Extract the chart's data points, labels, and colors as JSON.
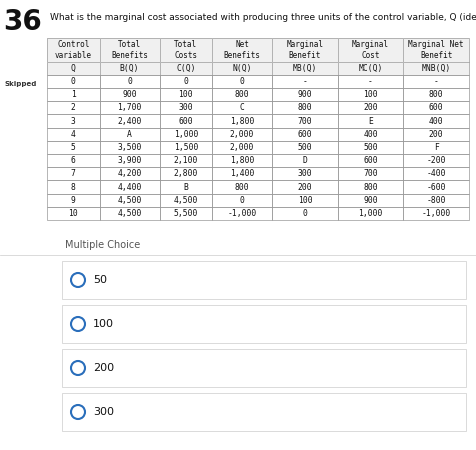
{
  "question_number": "36",
  "question_text": "What is the marginal cost associated with producing three units of the control variable, Q (identify point E in the table)?",
  "skipped_label": "Skipped",
  "table_headers_line1": [
    "Control",
    "Total",
    "Total",
    "Net",
    "Marginal",
    "Marginal",
    "Marginal Net"
  ],
  "table_headers_line2": [
    "variable",
    "Benefits",
    "Costs",
    "Benefits",
    "Benefit",
    "Cost",
    "Benefit"
  ],
  "table_subheaders": [
    "Q",
    "B(Q)",
    "C(Q)",
    "N(Q)",
    "MB(Q)",
    "MC(Q)",
    "MNB(Q)"
  ],
  "table_data": [
    [
      "0",
      "0",
      "0",
      "0",
      "-",
      "-",
      "-"
    ],
    [
      "1",
      "900",
      "100",
      "800",
      "900",
      "100",
      "800"
    ],
    [
      "2",
      "1,700",
      "300",
      "C",
      "800",
      "200",
      "600"
    ],
    [
      "3",
      "2,400",
      "600",
      "1,800",
      "700",
      "E",
      "400"
    ],
    [
      "4",
      "A",
      "1,000",
      "2,000",
      "600",
      "400",
      "200"
    ],
    [
      "5",
      "3,500",
      "1,500",
      "2,000",
      "500",
      "500",
      "F"
    ],
    [
      "6",
      "3,900",
      "2,100",
      "1,800",
      "D",
      "600",
      "-200"
    ],
    [
      "7",
      "4,200",
      "2,800",
      "1,400",
      "300",
      "700",
      "-400"
    ],
    [
      "8",
      "4,400",
      "B",
      "800",
      "200",
      "800",
      "-600"
    ],
    [
      "9",
      "4,500",
      "4,500",
      "0",
      "100",
      "900",
      "-800"
    ],
    [
      "10",
      "4,500",
      "5,500",
      "-1,000",
      "0",
      "1,000",
      "-1,000"
    ]
  ],
  "multiple_choice_label": "Multiple Choice",
  "choices": [
    "50",
    "100",
    "200",
    "300"
  ],
  "bg_top": "#ffffff",
  "bg_bottom": "#ebebeb",
  "table_bg": "#ffffff",
  "choice_bg": "#ffffff",
  "choice_border": "#cccccc",
  "radio_color": "#2a6ebb",
  "skipped_bg": "#f0c800",
  "skipped_text": "#333333",
  "header_bg": "#f0f0f0",
  "table_border": "#999999",
  "font_color": "#111111",
  "mc_sep_color": "#cccccc"
}
